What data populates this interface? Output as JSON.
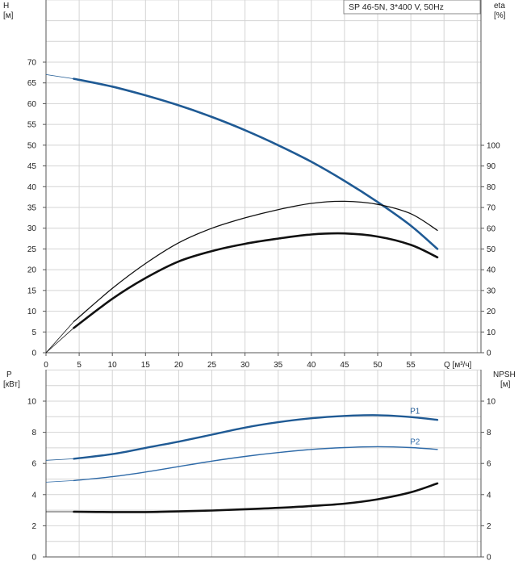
{
  "chart_data": [
    {
      "type": "line",
      "title": "SP 46-5N, 3*400 V, 50Hz",
      "xlabel": "Q [м³/ч]",
      "xticks": [
        0,
        5,
        10,
        15,
        20,
        25,
        30,
        35,
        40,
        45,
        50,
        55
      ],
      "xlim": [
        0,
        59
      ],
      "left_axis": {
        "label_1": "H",
        "label_2": "[м]",
        "ylim": [
          0,
          80
        ],
        "ticks": [
          0,
          5,
          10,
          15,
          20,
          25,
          30,
          35,
          40,
          45,
          50,
          55,
          60,
          65,
          70
        ]
      },
      "right_axis": {
        "label_1": "eta",
        "label_2": "[%]",
        "ylim": [
          0,
          100
        ],
        "ticks": [
          0,
          10,
          20,
          30,
          40,
          50,
          60,
          70,
          80,
          90,
          100
        ]
      },
      "grid": true,
      "series": [
        {
          "name": "",
          "axis": "left",
          "color": "#1f5a94",
          "x": [
            0,
            4.2,
            10,
            15,
            20,
            25,
            30,
            35,
            40,
            45,
            50,
            55,
            59
          ],
          "y": [
            67,
            66,
            64.1,
            62,
            59.6,
            56.8,
            53.6,
            50,
            46,
            41.4,
            36.3,
            30.6,
            25
          ]
        },
        {
          "name": "",
          "axis": "right",
          "color": "#111111",
          "x": [
            0,
            4.2,
            10,
            15,
            20,
            25,
            30,
            35,
            40,
            45,
            50,
            55,
            59
          ],
          "y": [
            0,
            15,
            31,
            43,
            53,
            60,
            65,
            69,
            72,
            73,
            71.5,
            67,
            59
          ]
        },
        {
          "name": "",
          "axis": "right",
          "color": "#111111",
          "x": [
            0,
            4.2,
            10,
            15,
            20,
            25,
            30,
            35,
            40,
            45,
            50,
            55,
            59
          ],
          "y": [
            0,
            12,
            26,
            36,
            44,
            49,
            52.5,
            55,
            57,
            57.5,
            56,
            52,
            46
          ]
        }
      ]
    },
    {
      "type": "line",
      "title": "",
      "xlim": [
        0,
        59
      ],
      "left_axis": {
        "label_1": "P",
        "label_2": "[кВт]",
        "ylim": [
          0,
          12
        ],
        "ticks": [
          0,
          2,
          4,
          6,
          8,
          10
        ]
      },
      "right_axis": {
        "label_1": "NPSH",
        "label_2": "[м]",
        "ylim": [
          0,
          12
        ],
        "ticks": [
          0,
          2,
          4,
          6,
          8,
          10
        ]
      },
      "grid": true,
      "series": [
        {
          "name": "P1",
          "axis": "left",
          "color": "#1f5a94",
          "x": [
            0,
            4.2,
            10,
            15,
            20,
            25,
            30,
            35,
            40,
            45,
            50,
            55,
            59
          ],
          "y": [
            6.2,
            6.3,
            6.6,
            7,
            7.4,
            7.85,
            8.3,
            8.65,
            8.9,
            9.05,
            9.1,
            8.98,
            8.8
          ]
        },
        {
          "name": "P2",
          "axis": "left",
          "color": "#2e6aa8",
          "x": [
            0,
            4.2,
            10,
            15,
            20,
            25,
            30,
            35,
            40,
            45,
            50,
            55,
            59
          ],
          "y": [
            4.8,
            4.9,
            5.15,
            5.45,
            5.8,
            6.15,
            6.45,
            6.7,
            6.9,
            7.02,
            7.08,
            7.02,
            6.9
          ]
        },
        {
          "name": "",
          "axis": "right",
          "color": "#111111",
          "x": [
            0,
            4.2,
            10,
            15,
            20,
            25,
            30,
            35,
            40,
            45,
            50,
            55,
            59
          ],
          "y": [
            2.9,
            2.9,
            2.88,
            2.88,
            2.92,
            2.98,
            3.06,
            3.15,
            3.27,
            3.42,
            3.7,
            4.15,
            4.72
          ]
        }
      ]
    }
  ]
}
